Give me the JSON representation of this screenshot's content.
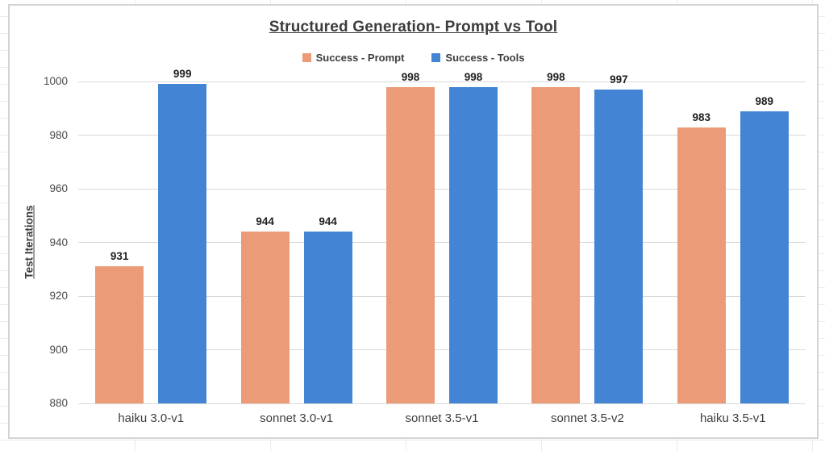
{
  "chart_data": {
    "type": "bar",
    "title": "Structured Generation- Prompt vs Tool",
    "xlabel": "",
    "ylabel": "Test Iterations",
    "categories": [
      "haiku 3.0-v1",
      "sonnet 3.0-v1",
      "sonnet 3.5-v1",
      "sonnet 3.5-v2",
      "haiku 3.5-v1"
    ],
    "series": [
      {
        "name": "Success - Prompt",
        "color": "#EC9B78",
        "values": [
          931,
          944,
          998,
          998,
          983
        ]
      },
      {
        "name": "Success - Tools",
        "color": "#4384D4",
        "values": [
          999,
          944,
          998,
          997,
          989
        ]
      }
    ],
    "ylim": [
      880,
      1000
    ],
    "ytick_step": 20,
    "grid": true,
    "legend_position": "top",
    "data_labels": true
  }
}
